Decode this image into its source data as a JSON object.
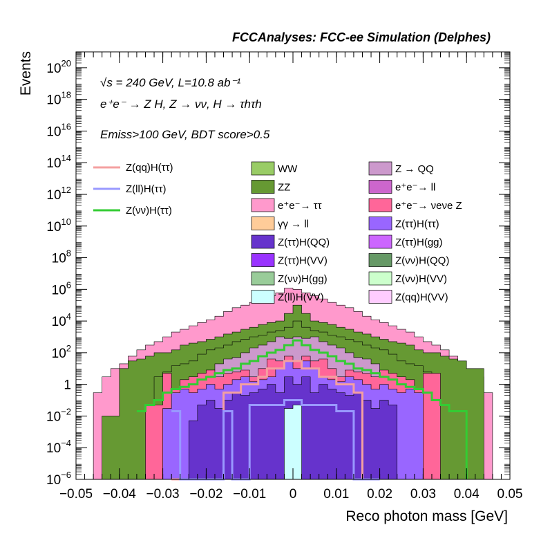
{
  "header": "FCCAnalyses: FCC-ee Simulation (Delphes)",
  "chart_data": {
    "type": "bar",
    "stacked": true,
    "xlabel": "Reco photon mass [GeV]",
    "ylabel": "Events",
    "log_y": true,
    "xlim": [
      -0.05,
      0.05
    ],
    "ylim": [
      1e-06,
      1e+21
    ],
    "x_ticks": [
      {
        "v": -0.05,
        "label": "−0.05"
      },
      {
        "v": -0.04,
        "label": "−0.04"
      },
      {
        "v": -0.03,
        "label": "−0.03"
      },
      {
        "v": -0.02,
        "label": "−0.02"
      },
      {
        "v": -0.01,
        "label": "−0.01"
      },
      {
        "v": 0,
        "label": "0"
      },
      {
        "v": 0.01,
        "label": "0.01"
      },
      {
        "v": 0.02,
        "label": "0.02"
      },
      {
        "v": 0.03,
        "label": "0.03"
      },
      {
        "v": 0.04,
        "label": "0.04"
      },
      {
        "v": 0.05,
        "label": "0.05"
      }
    ],
    "y_ticks": [
      {
        "v": 1e-06,
        "base": "10",
        "exp": "−6"
      },
      {
        "v": 0.0001,
        "base": "10",
        "exp": "−4"
      },
      {
        "v": 0.01,
        "base": "10",
        "exp": "−2"
      },
      {
        "v": 1,
        "base": "1",
        "exp": ""
      },
      {
        "v": 100.0,
        "base": "10",
        "exp": "2"
      },
      {
        "v": 10000.0,
        "base": "10",
        "exp": "4"
      },
      {
        "v": 1000000.0,
        "base": "10",
        "exp": "6"
      },
      {
        "v": 100000000.0,
        "base": "10",
        "exp": "8"
      },
      {
        "v": 10000000000.0,
        "base": "10",
        "exp": "10"
      },
      {
        "v": 1000000000000.0,
        "base": "10",
        "exp": "12"
      },
      {
        "v": 100000000000000.0,
        "base": "10",
        "exp": "14"
      },
      {
        "v": 1e+16,
        "base": "10",
        "exp": "16"
      },
      {
        "v": 1e+18,
        "base": "10",
        "exp": "18"
      },
      {
        "v": 1e+20,
        "base": "10",
        "exp": "20"
      }
    ],
    "annotations": [
      "√s = 240 GeV, L=10.8 ab⁻¹",
      "e⁺e⁻ → Z H, Z → νν, H → τhτh",
      "Emiss>100 GeV, BDT score>0.5"
    ],
    "signal_legend": [
      {
        "name": "Z(qq)H(ττ)",
        "color": "#f4a0a0"
      },
      {
        "name": "Z(ll)H(ττ)",
        "color": "#9999ff"
      },
      {
        "name": "Z(νν)H(ττ)",
        "color": "#33cc33"
      }
    ],
    "background_legend": [
      {
        "name": "WW",
        "color": "#99cc66"
      },
      {
        "name": "Z → QQ",
        "color": "#cc99cc"
      },
      {
        "name": "ZZ",
        "color": "#669933"
      },
      {
        "name": "e⁺e⁻→ ll",
        "color": "#cc66cc"
      },
      {
        "name": "e⁺e⁻→ ττ",
        "color": "#ff99cc"
      },
      {
        "name": "e⁺e⁻→ νeνe Z",
        "color": "#ff6699"
      },
      {
        "name": "γγ → ll",
        "color": "#ffcc99"
      },
      {
        "name": "Z(ττ)H(ττ)",
        "color": "#9966ff"
      },
      {
        "name": "Z(ττ)H(QQ)",
        "color": "#6633cc"
      },
      {
        "name": "Z(ττ)H(gg)",
        "color": "#cc66ff"
      },
      {
        "name": "Z(ττ)H(VV)",
        "color": "#9933ff"
      },
      {
        "name": "Z(νν)H(QQ)",
        "color": "#669966"
      },
      {
        "name": "Z(νν)H(gg)",
        "color": "#99cc99"
      },
      {
        "name": "Z(νν)H(VV)",
        "color": "#ccffcc"
      },
      {
        "name": "Z(ll)H(VV)",
        "color": "#ccffff"
      },
      {
        "name": "Z(qq)H(VV)",
        "color": "#ffccff"
      }
    ],
    "stack_envelopes": [
      {
        "name": "e⁺e⁻→ ττ",
        "color": "#ff99cc",
        "x": [
          -0.05,
          -0.046,
          -0.044,
          -0.042,
          -0.04,
          -0.038,
          -0.036,
          -0.034,
          -0.032,
          -0.03,
          -0.028,
          -0.026,
          -0.024,
          -0.022,
          -0.02,
          -0.018,
          -0.016,
          -0.014,
          -0.012,
          -0.01,
          -0.008,
          -0.006,
          -0.004,
          -0.002,
          0,
          0.002,
          0.004,
          0.006,
          0.008,
          0.01,
          0.012,
          0.014,
          0.016,
          0.018,
          0.02,
          0.022,
          0.024,
          0.026,
          0.028,
          0.03,
          0.032,
          0.034,
          0.036,
          0.038,
          0.04,
          0.042,
          0.044,
          0.046,
          0.05
        ],
        "y": [
          1e-06,
          0.3,
          3,
          10,
          20,
          60,
          150,
          300,
          500,
          1000,
          2000,
          3000,
          5000,
          8000,
          12000.0,
          20000.0,
          40000.0,
          70000.0,
          100000.0,
          150000.0,
          250000.0,
          400000.0,
          600000.0,
          1200000.0,
          1000000.0,
          600000.0,
          400000.0,
          250000.0,
          150000.0,
          100000.0,
          70000.0,
          40000.0,
          20000.0,
          12000.0,
          8000,
          5000,
          3000,
          2000,
          1000,
          500,
          300,
          150,
          60,
          20,
          10,
          3,
          0.3,
          1e-06,
          1e-06
        ]
      },
      {
        "name": "ZZ",
        "color": "#669933",
        "x": [
          -0.044,
          -0.04,
          -0.038,
          -0.036,
          -0.034,
          -0.032,
          -0.03,
          -0.028,
          -0.026,
          -0.024,
          -0.022,
          -0.02,
          -0.018,
          -0.016,
          -0.014,
          -0.012,
          -0.01,
          -0.008,
          -0.006,
          -0.004,
          -0.002,
          0,
          0.002,
          0.004,
          0.006,
          0.008,
          0.01,
          0.012,
          0.014,
          0.016,
          0.018,
          0.02,
          0.022,
          0.024,
          0.026,
          0.028,
          0.03,
          0.032,
          0.034,
          0.036,
          0.038,
          0.04,
          0.044
        ],
        "y": [
          0.01,
          10,
          30,
          40,
          60,
          100,
          100,
          150,
          300,
          400,
          500,
          700,
          1000,
          1500,
          2000,
          3000,
          4000,
          6000,
          8000,
          10000.0,
          30000.0,
          100000.0,
          30000.0,
          10000.0,
          8000,
          6000,
          4000,
          3000,
          2000,
          1500,
          1000,
          700,
          500,
          400,
          300,
          150,
          100,
          100,
          60,
          40,
          30,
          10,
          0.01
        ]
      },
      {
        "name": "ZZ (inner)",
        "color": "#669933",
        "x": [
          -0.032,
          -0.03,
          -0.028,
          -0.026,
          -0.024,
          -0.022,
          -0.02,
          -0.018,
          -0.016,
          -0.014,
          -0.012,
          -0.01,
          -0.008,
          -0.006,
          -0.004,
          -0.002,
          0,
          0.002,
          0.004,
          0.006,
          0.008,
          0.01,
          0.012,
          0.014,
          0.016,
          0.018,
          0.02,
          0.022,
          0.024,
          0.026,
          0.028,
          0.03,
          0.032
        ],
        "y": [
          3,
          6,
          15,
          20,
          30,
          80,
          150,
          200,
          300,
          500,
          700,
          1000,
          1300,
          2000,
          2500,
          4000,
          10000.0,
          4000,
          2500,
          2000,
          1300,
          1000,
          700,
          500,
          300,
          200,
          150,
          80,
          30,
          20,
          15,
          6,
          3
        ]
      },
      {
        "name": "Z → QQ",
        "color": "#cc99cc",
        "x": [
          -0.02,
          -0.018,
          -0.016,
          -0.014,
          -0.012,
          -0.01,
          -0.008,
          -0.006,
          -0.004,
          -0.002,
          0,
          0.002,
          0.004,
          0.006,
          0.008,
          0.01,
          0.012,
          0.014,
          0.016,
          0.018,
          0.02
        ],
        "y": [
          8,
          20,
          40,
          50,
          100,
          200,
          300,
          500,
          1000,
          800,
          1000,
          800,
          1000,
          500,
          300,
          200,
          100,
          50,
          40,
          20,
          8
        ]
      },
      {
        "name": "e⁺e⁻→ νeνe Z",
        "color": "#ff6699",
        "x": [
          -0.034,
          -0.03,
          -0.028,
          -0.026,
          -0.024,
          -0.022,
          -0.02,
          -0.018,
          -0.016,
          -0.014,
          -0.012,
          -0.01,
          -0.008,
          -0.006,
          -0.004,
          -0.002,
          0,
          0.002,
          0.004,
          0.006,
          0.008,
          0.01,
          0.012,
          0.014,
          0.016,
          0.018,
          0.02,
          0.022,
          0.024,
          0.026,
          0.028,
          0.03,
          0.034
        ],
        "y": [
          0.05,
          5,
          0.5,
          2,
          3,
          5,
          8,
          3,
          5,
          6,
          8,
          3,
          10,
          40,
          30,
          60,
          30,
          60,
          30,
          40,
          10,
          3,
          8,
          6,
          5,
          3,
          8,
          5,
          3,
          2,
          0.5,
          5,
          0.05
        ]
      },
      {
        "name": "Z(ττ)H(ττ)",
        "color": "#9966ff",
        "x": [
          -0.03,
          -0.028,
          -0.026,
          -0.024,
          -0.022,
          -0.02,
          -0.018,
          -0.016,
          -0.014,
          -0.012,
          -0.01,
          -0.008,
          -0.006,
          -0.004,
          -0.002,
          0,
          0.002,
          0.004,
          0.006,
          0.008,
          0.01,
          0.012,
          0.014,
          0.016,
          0.018,
          0.02,
          0.022,
          0.024,
          0.026,
          0.028,
          0.03
        ],
        "y": [
          0.03,
          0.3,
          0.5,
          0.3,
          0.5,
          1,
          0.5,
          1,
          2,
          3,
          1.5,
          2,
          3,
          10,
          30,
          10,
          30,
          10,
          3,
          2,
          1.5,
          3,
          2,
          1,
          0.5,
          1,
          0.5,
          0.3,
          0.5,
          0.3,
          0.03
        ]
      },
      {
        "name": "Z(ττ)H(QQ)",
        "color": "#6633cc",
        "x": [
          -0.024,
          -0.022,
          -0.02,
          -0.018,
          -0.016,
          -0.014,
          -0.012,
          -0.01,
          -0.008,
          -0.006,
          -0.004,
          -0.002,
          0,
          0.002,
          0.004,
          0.006,
          0.008,
          0.01,
          0.012,
          0.014,
          0.016,
          0.018,
          0.02,
          0.022,
          0.024
        ],
        "y": [
          0.005,
          0.05,
          0.1,
          0.03,
          0.1,
          0.3,
          0.2,
          0.3,
          0.5,
          1,
          0.3,
          3,
          1,
          3,
          0.3,
          1,
          0.5,
          0.3,
          0.2,
          0.3,
          0.1,
          0.03,
          0.1,
          0.05,
          0.005
        ]
      },
      {
        "name": "Z(ll)H(VV)",
        "color": "#ccffff",
        "x": [
          -0.002,
          0,
          0.002
        ],
        "y": [
          0.03,
          0.05,
          0.03
        ]
      }
    ],
    "signal_lines": [
      {
        "name": "Z(νν)H(ττ)",
        "color": "#33cc33",
        "x": [
          -0.036,
          -0.034,
          -0.032,
          -0.03,
          -0.028,
          -0.026,
          -0.024,
          -0.022,
          -0.02,
          -0.018,
          -0.016,
          -0.014,
          -0.012,
          -0.01,
          -0.008,
          -0.006,
          -0.004,
          -0.002,
          0,
          0.002,
          0.004,
          0.006,
          0.008,
          0.01,
          0.012,
          0.014,
          0.016,
          0.018,
          0.02,
          0.022,
          0.024,
          0.026,
          0.028,
          0.03,
          0.032,
          0.034,
          0.036,
          0.038,
          0.04
        ],
        "y": [
          0.02,
          0.05,
          0.1,
          0.3,
          0.5,
          0.7,
          1,
          2,
          3,
          5,
          8,
          10,
          20,
          30,
          60,
          100,
          150,
          300,
          600,
          300,
          150,
          100,
          60,
          30,
          20,
          10,
          8,
          5,
          3,
          2,
          1,
          0.7,
          0.5,
          0.3,
          0.1,
          0.05,
          0.02,
          0.02,
          1e-06
        ]
      },
      {
        "name": "Z(qq)H(ττ)",
        "color": "#f4a0a0",
        "x": [
          -0.028,
          -0.026,
          -0.024,
          -0.022,
          -0.02,
          -0.018,
          -0.016,
          -0.014,
          -0.012,
          -0.01,
          -0.008,
          -0.006,
          -0.004,
          -0.002,
          0,
          0.002,
          0.004,
          0.006,
          0.008,
          0.01,
          0.012,
          0.014,
          0.016,
          0.018,
          0.02
        ],
        "y": [
          1e-06,
          1e-06,
          1e-06,
          1e-06,
          1e-06,
          1e-06,
          0.3,
          0.3,
          1,
          1,
          3,
          10,
          10,
          30,
          30,
          10,
          10,
          3,
          3,
          1,
          1,
          0.3,
          1e-06,
          1e-06,
          1e-06
        ]
      },
      {
        "name": "Z(ll)H(ττ)",
        "color": "#9999ff",
        "x": [
          -0.028,
          -0.026,
          -0.024,
          -0.022,
          -0.02,
          -0.018,
          -0.016,
          -0.014,
          -0.012,
          -0.01,
          -0.008,
          -0.006,
          -0.004,
          -0.002,
          0,
          0.002,
          0.004,
          0.006,
          0.008,
          0.01,
          0.012,
          0.014,
          0.016,
          0.018,
          0.02
        ],
        "y": [
          0.02,
          1e-06,
          1e-06,
          1e-06,
          1e-06,
          1e-06,
          0.02,
          1e-06,
          1e-06,
          0.05,
          0.05,
          0.05,
          0.05,
          0.1,
          0.1,
          0.05,
          0.05,
          0.05,
          0.05,
          0.02,
          0.02,
          1e-06,
          1e-06,
          1e-06,
          1e-06
        ]
      }
    ]
  }
}
